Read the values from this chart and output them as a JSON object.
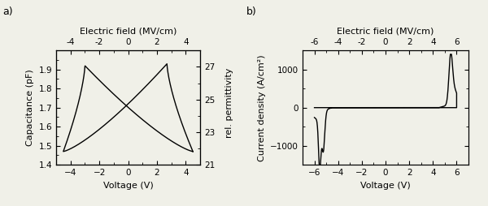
{
  "fig_width": 6.0,
  "fig_height": 2.54,
  "dpi": 100,
  "bg_color": "#f0f0e8",
  "panel_a": {
    "label": "a)",
    "xlabel": "Voltage (V)",
    "ylabel_left": "Capacitance (pF)",
    "ylabel_right": "rel. permittivity",
    "top_xlabel": "Electric field (MV/cm)",
    "xlim": [
      -5,
      5
    ],
    "ylim_left": [
      1.4,
      2.0
    ],
    "ylim_right": [
      21.0,
      28.0
    ],
    "xticks": [
      -4,
      -2,
      0,
      2,
      4
    ],
    "yticks_left": [
      1.4,
      1.5,
      1.6,
      1.7,
      1.8,
      1.9
    ],
    "yticks_right": [
      21.0,
      23.0,
      25.0,
      27.0
    ],
    "top_xticks": [
      -4,
      -2,
      0,
      2,
      4
    ],
    "line_color": "#000000",
    "line_width": 1.0
  },
  "panel_b": {
    "label": "b)",
    "xlabel": "Voltage (V)",
    "ylabel": "Current density (A/cm²)",
    "top_xlabel": "Electric field (MV/cm)",
    "xlim": [
      -7,
      7
    ],
    "ylim": [
      -1500,
      1500
    ],
    "xticks": [
      -6,
      -4,
      -2,
      0,
      2,
      4,
      6
    ],
    "yticks": [
      -1000,
      0,
      1000
    ],
    "top_xticks": [
      -6,
      -4,
      -2,
      0,
      2,
      4,
      6
    ],
    "line_color": "#000000",
    "line_width": 1.0
  }
}
